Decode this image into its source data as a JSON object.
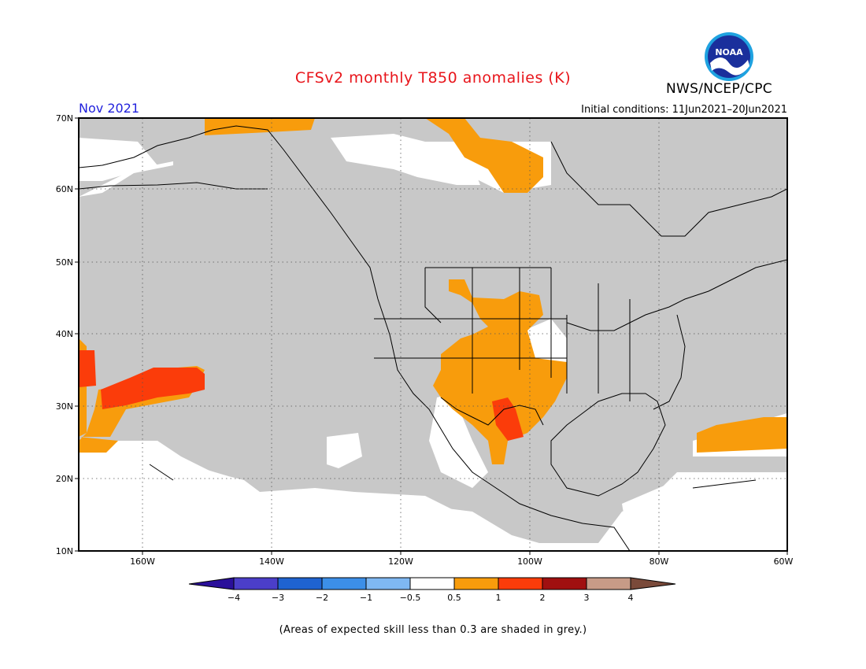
{
  "title": "CFSv2 monthly T850 anomalies (K)",
  "valid_month": "Nov 2021",
  "initial_conditions": "Initial conditions: 11Jun2021–20Jun2021",
  "agency": "NWS/NCEP/CPC",
  "logo_text": "NOAA",
  "footnote": "(Areas of expected skill less than 0.3 are shaded in grey.)",
  "map": {
    "lat_labels": [
      "70N",
      "60N",
      "50N",
      "40N",
      "30N",
      "20N",
      "10N"
    ],
    "lon_labels": [
      "160W",
      "140W",
      "120W",
      "100W",
      "80W",
      "60W"
    ],
    "colors": {
      "low_skill_grey": "#c8c8c8",
      "anom_0_5_to_1": "#f89c0c",
      "anom_1_to_2": "#fb3c0a",
      "land_outline": "#000000"
    }
  },
  "colorbar": {
    "labels": [
      "−4",
      "−3",
      "−2",
      "−1",
      "−0.5",
      "0.5",
      "1",
      "2",
      "3",
      "4"
    ],
    "colors": [
      "#2a0f9a",
      "#4b3ec9",
      "#1f63d0",
      "#3c8fe8",
      "#7fb8f2",
      "#ffffff",
      "#f89c0c",
      "#fb3c0a",
      "#a01010",
      "#c79b87",
      "#7a4a3a"
    ]
  }
}
